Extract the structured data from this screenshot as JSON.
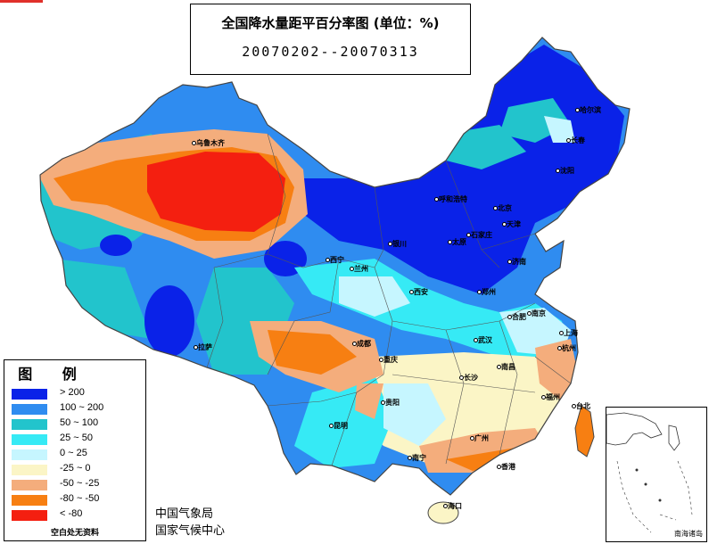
{
  "title": {
    "line1": "全国降水量距平百分率图 (单位：%)",
    "line2": "20070202--20070313"
  },
  "legend": {
    "title": "图 例",
    "items": [
      {
        "label": "> 200",
        "color": "#0a22e8"
      },
      {
        "label": "100 ~ 200",
        "color": "#2f8cf0"
      },
      {
        "label": "50 ~ 100",
        "color": "#22c4cc"
      },
      {
        "label": "25 ~ 50",
        "color": "#36eaf5"
      },
      {
        "label": "0 ~ 25",
        "color": "#c6f6ff"
      },
      {
        "label": "-25 ~ 0",
        "color": "#fbf5c6"
      },
      {
        "label": "-50 ~ -25",
        "color": "#f4ad7c"
      },
      {
        "label": "-80 ~ -50",
        "color": "#f77f12"
      },
      {
        "label": "< -80",
        "color": "#f41f10"
      }
    ],
    "note": "空白处无资料"
  },
  "agency": {
    "line1": "中国气象局",
    "line2": "国家气候中心"
  },
  "inset": {
    "label": "南海诸岛"
  },
  "cities": [
    "乌鲁木齐",
    "哈尔滨",
    "长春",
    "沈阳",
    "呼和浩特",
    "北京",
    "天津",
    "石家庄",
    "太原",
    "济南",
    "银川",
    "西宁",
    "兰州",
    "西安",
    "郑州",
    "合肥",
    "南京",
    "上海",
    "武汉",
    "成都",
    "重庆",
    "拉萨",
    "长沙",
    "南昌",
    "杭州",
    "福州",
    "台北",
    "贵阳",
    "昆明",
    "南宁",
    "广州",
    "香港",
    "海口"
  ]
}
